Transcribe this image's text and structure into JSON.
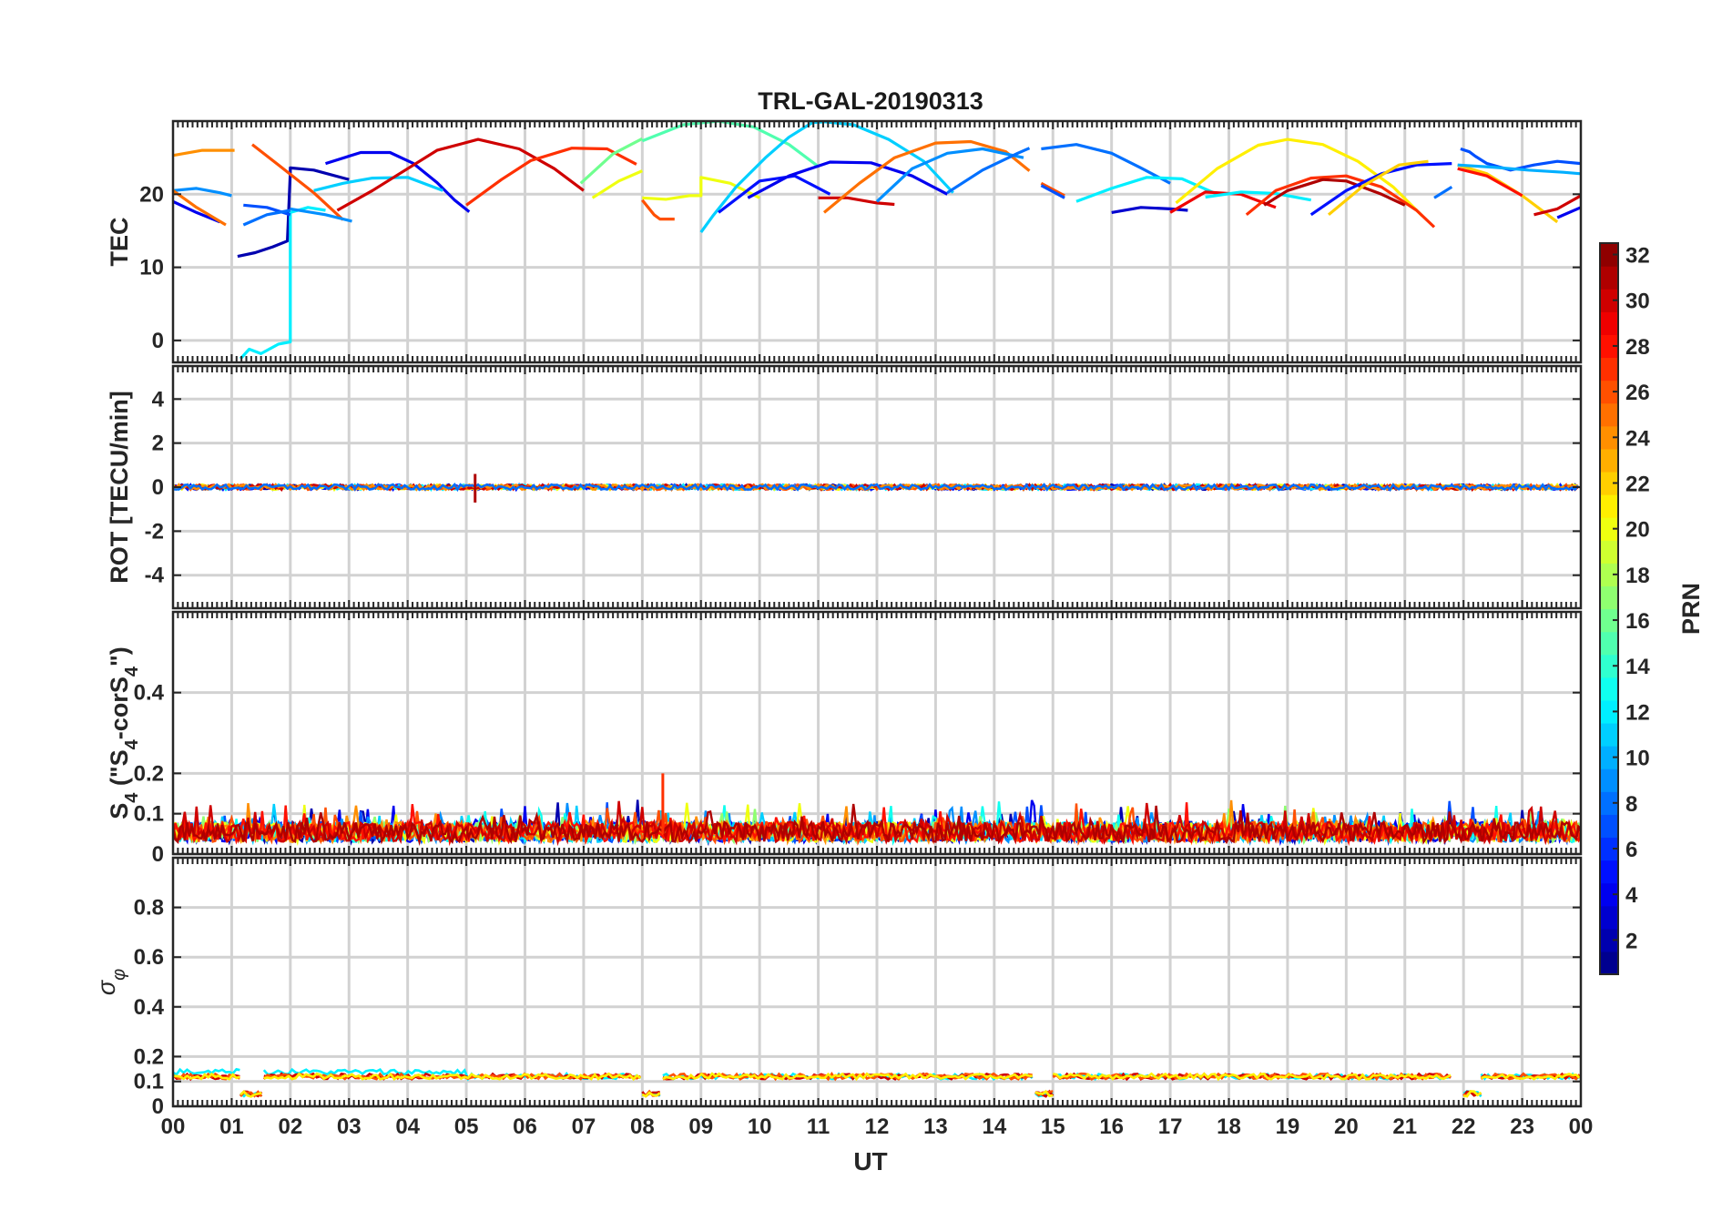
{
  "chart_data": {
    "type": "line",
    "title": "TRL-GAL-20190313",
    "xlabel": "UT",
    "xlim": [
      0,
      24
    ],
    "x_tick_labels": [
      "00",
      "01",
      "02",
      "03",
      "04",
      "05",
      "06",
      "07",
      "08",
      "09",
      "10",
      "11",
      "12",
      "13",
      "14",
      "15",
      "16",
      "17",
      "18",
      "19",
      "20",
      "21",
      "22",
      "23",
      "00"
    ],
    "colorbar": {
      "label": "PRN",
      "range": [
        1,
        32
      ],
      "tick_labels": [
        "2",
        "4",
        "6",
        "8",
        "10",
        "12",
        "14",
        "16",
        "18",
        "20",
        "22",
        "24",
        "26",
        "28",
        "30",
        "32"
      ],
      "tick_values": [
        2,
        4,
        6,
        8,
        10,
        12,
        14,
        16,
        18,
        20,
        22,
        24,
        26,
        28,
        30,
        32
      ]
    },
    "panels": [
      {
        "name": "tec",
        "ylabel": "TEC",
        "ylim": [
          -3,
          30
        ],
        "ytick_values": [
          0,
          10,
          20
        ],
        "ytick_labels": [
          "0",
          "10",
          "20"
        ],
        "series": [
          {
            "prn": 4,
            "x": [
              0.0,
              0.4,
              0.8
            ],
            "y": [
              19,
              17.5,
              16.2
            ]
          },
          {
            "prn": 9,
            "x": [
              0.0,
              0.4,
              0.8,
              1.0
            ],
            "y": [
              20.5,
              20.8,
              20.2,
              19.8
            ]
          },
          {
            "prn": 24,
            "x": [
              0.0,
              0.5,
              1.05
            ],
            "y": [
              25.3,
              26.0,
              26.0
            ]
          },
          {
            "prn": 25,
            "x": [
              0.0,
              0.4,
              0.9
            ],
            "y": [
              20.5,
              18.2,
              15.8
            ]
          },
          {
            "prn": 2,
            "x": [
              1.1,
              1.4,
              1.7,
              1.95,
              2.0,
              2.0,
              2.4,
              3.0
            ],
            "y": [
              11.5,
              12,
              12.8,
              13.6,
              23,
              23.6,
              23.3,
              22
            ]
          },
          {
            "prn": 12,
            "x": [
              1.15,
              1.3,
              1.5,
              1.8,
              2.0,
              2.0,
              2.3,
              2.6
            ],
            "y": [
              -2.5,
              -1.2,
              -1.8,
              -0.5,
              -0.2,
              17.5,
              18.2,
              17.8
            ]
          },
          {
            "prn": 7,
            "x": [
              1.2,
              1.6,
              2.0
            ],
            "y": [
              18.5,
              18.2,
              17.2
            ]
          },
          {
            "prn": 8,
            "x": [
              1.2,
              1.6,
              2.0
            ],
            "y": [
              15.8,
              17.2,
              17.8
            ]
          },
          {
            "prn": 26,
            "x": [
              1.35,
              1.8,
              2.4,
              2.9
            ],
            "y": [
              26.8,
              24,
              20.2,
              16.5
            ]
          },
          {
            "prn": 4,
            "x": [
              2.6,
              3.2,
              3.7,
              4.1,
              4.5,
              4.8,
              5.05
            ],
            "y": [
              24.2,
              25.7,
              25.7,
              24.2,
              21.6,
              19.2,
              17.6
            ]
          },
          {
            "prn": 11,
            "x": [
              2.4,
              2.9,
              3.4,
              4.0,
              4.6
            ],
            "y": [
              20.5,
              21.5,
              22.2,
              22.3,
              20.5
            ]
          },
          {
            "prn": 9,
            "x": [
              2.0,
              2.6,
              3.05
            ],
            "y": [
              18,
              17.2,
              16.3
            ]
          },
          {
            "prn": 30,
            "x": [
              2.8,
              3.4,
              4.0,
              4.5,
              5.2,
              5.9,
              6.5,
              7.0
            ],
            "y": [
              17.8,
              20.5,
              23.5,
              26,
              27.5,
              26.2,
              23.5,
              20.5
            ]
          },
          {
            "prn": 27,
            "x": [
              5.0,
              5.6,
              6.1,
              6.8,
              7.4,
              7.9
            ],
            "y": [
              18.5,
              22,
              24.6,
              26.3,
              26.2,
              24.1
            ]
          },
          {
            "prn": 16,
            "x": [
              6.95,
              7.5,
              8.0
            ],
            "y": [
              21.5,
              25.5,
              27.6
            ]
          },
          {
            "prn": 20,
            "x": [
              7.15,
              7.6,
              8.0
            ],
            "y": [
              19.5,
              21.8,
              23.2
            ]
          },
          {
            "prn": 26,
            "x": [
              8.0,
              8.2,
              8.3,
              8.55
            ],
            "y": [
              19.2,
              17.2,
              16.6,
              16.6
            ]
          },
          {
            "prn": 20,
            "x": [
              8.0,
              8.4,
              8.8,
              9.0,
              9.0,
              9.5,
              10.0
            ],
            "y": [
              19.5,
              19.3,
              19.8,
              19.8,
              22.3,
              21.5,
              19.5
            ]
          },
          {
            "prn": 15,
            "x": [
              8.0,
              8.7,
              9.3,
              9.9,
              10.5,
              11.0
            ],
            "y": [
              27.3,
              29.5,
              30,
              29.2,
              26.8,
              23.8
            ]
          },
          {
            "prn": 11,
            "x": [
              9.0,
              9.2,
              9.6,
              10.1,
              10.5,
              10.9,
              11.3
            ],
            "y": [
              14.8,
              17,
              21,
              25,
              27.8,
              29.8,
              30
            ]
          },
          {
            "prn": 5,
            "x": [
              9.3,
              10.0,
              10.6,
              11.2
            ],
            "y": [
              17.5,
              21.8,
              22.5,
              20
            ]
          },
          {
            "prn": 4,
            "x": [
              9.8,
              10.5,
              11.2,
              11.9,
              12.6,
              13.2
            ],
            "y": [
              19.5,
              22.5,
              24.4,
              24.3,
              22.5,
              20
            ]
          },
          {
            "prn": 11,
            "x": [
              11.0,
              11.6,
              12.2,
              12.8,
              13.3
            ],
            "y": [
              30,
              29.5,
              27.5,
              24.5,
              20.2
            ]
          },
          {
            "prn": 30,
            "x": [
              11.0,
              11.5,
              12.0,
              12.3
            ],
            "y": [
              19.5,
              19.5,
              18.8,
              18.6
            ]
          },
          {
            "prn": 25,
            "x": [
              11.1,
              11.7,
              12.3,
              13.0,
              13.6,
              14.2,
              14.6
            ],
            "y": [
              17.5,
              21.5,
              25,
              27,
              27.2,
              25.8,
              23.2
            ]
          },
          {
            "prn": 9,
            "x": [
              12.0,
              12.6,
              13.2,
              13.8,
              14.5
            ],
            "y": [
              19,
              23.5,
              25.6,
              26.2,
              25
            ]
          },
          {
            "prn": 8,
            "x": [
              13.2,
              13.8,
              14.4,
              14.6
            ],
            "y": [
              20.2,
              23.3,
              25.6,
              26.3
            ]
          },
          {
            "prn": 8,
            "x": [
              14.8,
              15.4,
              16.0,
              16.5,
              17.0
            ],
            "y": [
              26.2,
              26.8,
              25.6,
              23.6,
              21.5
            ]
          },
          {
            "prn": 26,
            "x": [
              14.8,
              15.2
            ],
            "y": [
              21.5,
              19.8
            ]
          },
          {
            "prn": 7,
            "x": [
              14.8,
              15.2
            ],
            "y": [
              21.2,
              19.5
            ]
          },
          {
            "prn": 12,
            "x": [
              15.4,
              16.0,
              16.6,
              17.2,
              17.8
            ],
            "y": [
              19,
              20.8,
              22.3,
              22.1,
              20
            ]
          },
          {
            "prn": 3,
            "x": [
              16.0,
              16.5,
              17.0,
              17.3
            ],
            "y": [
              17.5,
              18.2,
              18.0,
              17.8
            ]
          },
          {
            "prn": 29,
            "x": [
              17.0,
              17.6,
              18.2,
              18.8
            ],
            "y": [
              17.5,
              20.3,
              20.0,
              18.2
            ]
          },
          {
            "prn": 12,
            "x": [
              17.6,
              18.2,
              18.8,
              19.4
            ],
            "y": [
              19.6,
              20.3,
              20.1,
              19.2
            ]
          },
          {
            "prn": 21,
            "x": [
              17.1,
              17.8,
              18.5,
              19.0,
              19.6,
              20.2,
              20.8,
              21.3
            ],
            "y": [
              18.8,
              23.5,
              26.7,
              27.5,
              26.8,
              24.5,
              21,
              17
            ]
          },
          {
            "prn": 27,
            "x": [
              18.3,
              18.8,
              19.4,
              20.0,
              20.6,
              21.2,
              21.5
            ],
            "y": [
              17.2,
              20.5,
              22.2,
              22.5,
              21,
              17.8,
              15.5
            ]
          },
          {
            "prn": 31,
            "x": [
              18.6,
              19.0,
              19.6,
              20.0,
              20.6,
              21.0
            ],
            "y": [
              18.5,
              20.5,
              22,
              21.8,
              20,
              18.5
            ]
          },
          {
            "prn": 5,
            "x": [
              19.4,
              20.0,
              20.6,
              21.2,
              21.8
            ],
            "y": [
              17.2,
              20.5,
              22.8,
              24,
              24.2
            ]
          },
          {
            "prn": 22,
            "x": [
              19.7,
              20.3,
              20.9,
              21.4
            ],
            "y": [
              17.2,
              21.2,
              24,
              24.5
            ]
          },
          {
            "prn": 8,
            "x": [
              21.5,
              21.8
            ],
            "y": [
              19.5,
              21
            ]
          },
          {
            "prn": 7,
            "x": [
              21.95,
              22.1,
              22.2,
              22.4,
              22.8,
              23.2,
              23.6,
              24.0
            ],
            "y": [
              26.2,
              25.8,
              25.2,
              24.2,
              23.3,
              24,
              24.5,
              24.2
            ]
          },
          {
            "prn": 22,
            "x": [
              21.9,
              22.4,
              23.0,
              23.6
            ],
            "y": [
              24,
              22.8,
              19.8,
              16.2
            ]
          },
          {
            "prn": 10,
            "x": [
              21.9,
              22.5,
              23.1,
              23.7,
              24.0
            ],
            "y": [
              24,
              23.7,
              23.3,
              23.0,
              22.8
            ]
          },
          {
            "prn": 28,
            "x": [
              21.9,
              22.4,
              23.0
            ],
            "y": [
              23.5,
              22.5,
              19.8
            ]
          },
          {
            "prn": 30,
            "x": [
              23.2,
              23.6,
              24.0
            ],
            "y": [
              17.2,
              18.0,
              19.8
            ]
          },
          {
            "prn": 4,
            "x": [
              23.6,
              24.0
            ],
            "y": [
              16.8,
              18.2
            ]
          }
        ]
      },
      {
        "name": "rot",
        "ylabel": "ROT [TECU/min]",
        "ylim": [
          -5.5,
          5.5
        ],
        "ytick_values": [
          -4,
          -2,
          0,
          2,
          4
        ],
        "ytick_labels": [
          "-4",
          "-2",
          "0",
          "2",
          "4"
        ],
        "baseline": 0,
        "noise_amplitude": 0.12,
        "spikes": [
          {
            "x": 5.15,
            "y_min": -0.7,
            "y_max": 0.6
          }
        ]
      },
      {
        "name": "s4",
        "ylabel_parts": [
          "S",
          "4",
          " (\"S",
          "4",
          "-corS",
          "4",
          "\")"
        ],
        "ylim": [
          0,
          0.6
        ],
        "ytick_values": [
          0,
          0.1,
          0.2,
          0.4
        ],
        "ytick_labels": [
          "0",
          "0.1",
          "0.2",
          "0.4"
        ],
        "typical_level": [
          0.03,
          0.12
        ],
        "peak": {
          "x": 8.35,
          "y": 0.2
        }
      },
      {
        "name": "sigma_phi",
        "ylabel_parts": [
          "σ",
          "φ"
        ],
        "ylim": [
          0,
          1.0
        ],
        "ytick_values": [
          0,
          0.1,
          0.2,
          0.4,
          0.6,
          0.8
        ],
        "ytick_labels": [
          "0",
          "0.1",
          "0.2",
          "0.4",
          "0.6",
          "0.8"
        ],
        "segments": [
          {
            "x": [
              0.0,
              1.15
            ],
            "y": 0.12
          },
          {
            "x": [
              1.15,
              1.55
            ],
            "y": 0.05
          },
          {
            "x": [
              1.55,
              8.0
            ],
            "y": 0.12
          },
          {
            "x": [
              8.0,
              8.35
            ],
            "y": 0.05
          },
          {
            "x": [
              8.35,
              14.7
            ],
            "y": 0.12
          },
          {
            "x": [
              14.7,
              15.0
            ],
            "y": 0.05
          },
          {
            "x": [
              15.0,
              21.8
            ],
            "y": 0.12
          },
          {
            "x": [
              22.0,
              22.3
            ],
            "y": 0.05
          },
          {
            "x": [
              22.3,
              24.0
            ],
            "y": 0.12
          }
        ]
      }
    ]
  }
}
